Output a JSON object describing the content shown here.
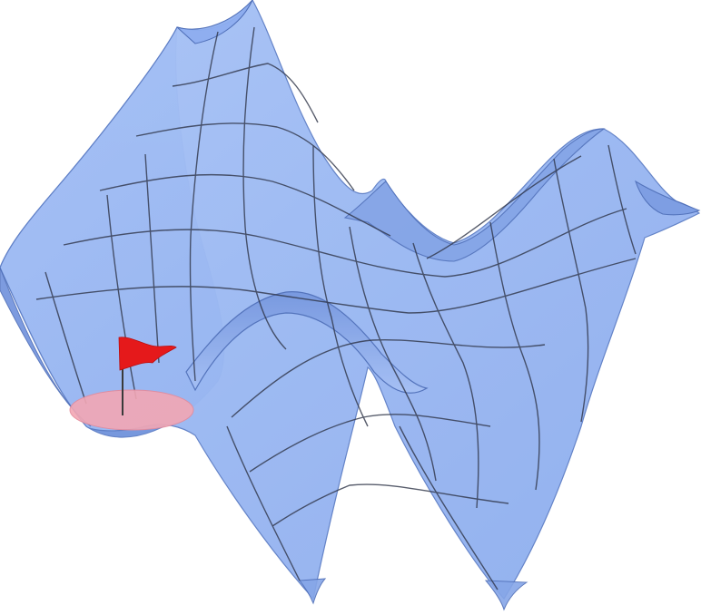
{
  "figure": {
    "subject": "3d-surface-landscape",
    "colors": {
      "background": "#ffffff",
      "surface_front": "#9ab8f2",
      "surface_back": "#7e9fe3",
      "surface_light": "#b6cdf8",
      "surface_edge": "#5f7fc6",
      "mesh_line": "#2f3548",
      "minimum_disc": "#f3a7b4",
      "flag": "#e5191b",
      "flag_pole": "#3a3a3a"
    },
    "icons": {
      "marker": "flag-icon",
      "target_region": "minimum-disc"
    }
  }
}
